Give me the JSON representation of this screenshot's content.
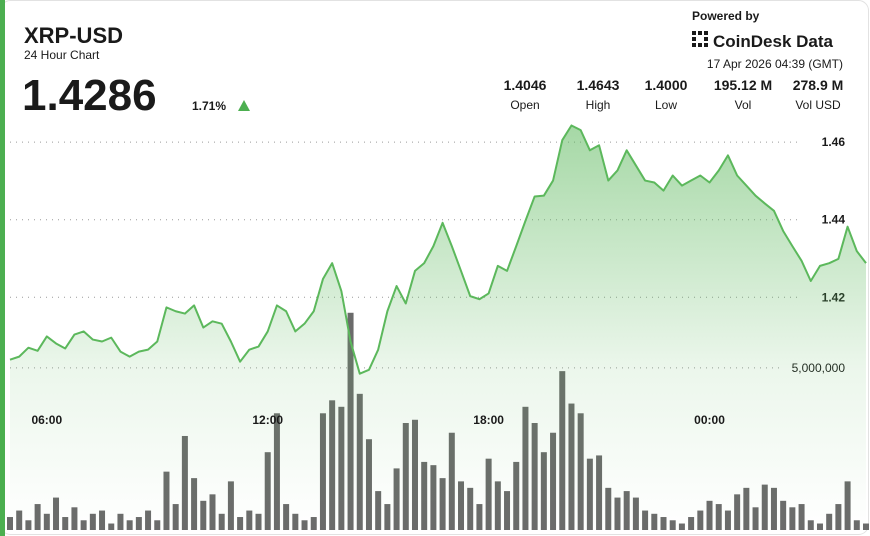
{
  "header": {
    "title": "XRP-USD",
    "subtitle": "24 Hour Chart",
    "price": "1.4286",
    "change": "1.71%",
    "powered_by": "Powered by",
    "brand": "CoinDesk Data",
    "timestamp": "17 Apr 2026 04:39 (GMT)"
  },
  "stats": [
    {
      "value": "1.4046",
      "label": "Open"
    },
    {
      "value": "1.4643",
      "label": "High"
    },
    {
      "value": "1.4000",
      "label": "Low"
    },
    {
      "value": "195.12 M",
      "label": "Vol"
    },
    {
      "value": "278.9 M",
      "label": "Vol USD"
    }
  ],
  "chart_data": {
    "type": "line",
    "categories": [
      null,
      null,
      null,
      null,
      "06:00",
      null,
      null,
      null,
      null,
      null,
      null,
      null,
      null,
      null,
      null,
      null,
      null,
      null,
      null,
      null,
      null,
      null,
      null,
      null,
      null,
      null,
      null,
      null,
      "12:00",
      null,
      null,
      null,
      null,
      null,
      null,
      null,
      null,
      null,
      null,
      null,
      null,
      null,
      null,
      null,
      null,
      null,
      null,
      null,
      null,
      null,
      null,
      null,
      "18:00",
      null,
      null,
      null,
      null,
      null,
      null,
      null,
      null,
      null,
      null,
      null,
      null,
      null,
      null,
      null,
      null,
      null,
      null,
      null,
      null,
      null,
      null,
      null,
      "00:00",
      null,
      null,
      null,
      null,
      null,
      null,
      null,
      null,
      null,
      null,
      null,
      null,
      null,
      null,
      null,
      null,
      null
    ],
    "series": [
      {
        "color": "#5cb85c",
        "values": [
          1.4039,
          1.4047,
          1.407,
          1.4062,
          1.4099,
          1.4081,
          1.4068,
          1.4104,
          1.4112,
          1.4091,
          1.4086,
          1.4096,
          1.406,
          1.4047,
          1.406,
          1.4065,
          1.4086,
          1.4174,
          1.4164,
          1.4158,
          1.4179,
          1.4122,
          1.4138,
          1.4132,
          1.4086,
          1.4034,
          1.4065,
          1.4073,
          1.4112,
          1.4179,
          1.4164,
          1.4112,
          1.4132,
          1.4164,
          1.4247,
          1.4288,
          1.4216,
          1.4086,
          1.4003,
          1.4013,
          1.4065,
          1.4164,
          1.4229,
          1.4184,
          1.4268,
          1.4288,
          1.4332,
          1.4392,
          1.4332,
          1.4268,
          1.4203,
          1.4195,
          1.421,
          1.4281,
          1.4268,
          1.4332,
          1.4397,
          1.446,
          1.4462,
          1.4501,
          1.4605,
          1.4643,
          1.4631,
          1.4579,
          1.4592,
          1.4501,
          1.4527,
          1.4579,
          1.454,
          1.4501,
          1.4496,
          1.4475,
          1.4514,
          1.4488,
          1.4501,
          1.4514,
          1.4496,
          1.4527,
          1.4566,
          1.4514,
          1.4488,
          1.4462,
          1.4442,
          1.4423,
          1.4371,
          1.4332,
          1.4294,
          1.4242,
          1.4281,
          1.4288,
          1.4299,
          1.4382,
          1.4319,
          1.4288
        ]
      },
      {
        "type": "bar",
        "axis": "y2",
        "color": "#6b6b6b",
        "values": [
          400000,
          600000,
          300000,
          800000,
          500000,
          1000000,
          400000,
          700000,
          300000,
          500000,
          600000,
          200000,
          500000,
          300000,
          400000,
          600000,
          300000,
          1800000,
          800000,
          2900000,
          1600000,
          900000,
          1100000,
          500000,
          1500000,
          400000,
          600000,
          500000,
          2400000,
          3600000,
          800000,
          500000,
          300000,
          400000,
          3600000,
          4000000,
          3800000,
          6700000,
          4200000,
          2800000,
          1200000,
          800000,
          1900000,
          3300000,
          3400000,
          2100000,
          2000000,
          1600000,
          3000000,
          1500000,
          1300000,
          800000,
          2200000,
          1500000,
          1200000,
          2100000,
          3800000,
          3300000,
          2400000,
          3000000,
          4900000,
          3900000,
          3600000,
          2200000,
          2300000,
          1300000,
          1000000,
          1200000,
          1000000,
          600000,
          500000,
          400000,
          300000,
          200000,
          400000,
          600000,
          900000,
          800000,
          600000,
          1100000,
          1300000,
          700000,
          1400000,
          1300000,
          900000,
          700000,
          800000,
          300000,
          200000,
          500000,
          800000,
          1500000,
          300000,
          200000
        ]
      }
    ],
    "ylim": [
      1.36,
      1.467
    ],
    "yticks": [
      1.42,
      1.44,
      1.46
    ],
    "y2lim": [
      0,
      12800000
    ],
    "y2ticks": [
      {
        "value": 5000000,
        "label": "5,000,000"
      }
    ],
    "grid": true
  }
}
